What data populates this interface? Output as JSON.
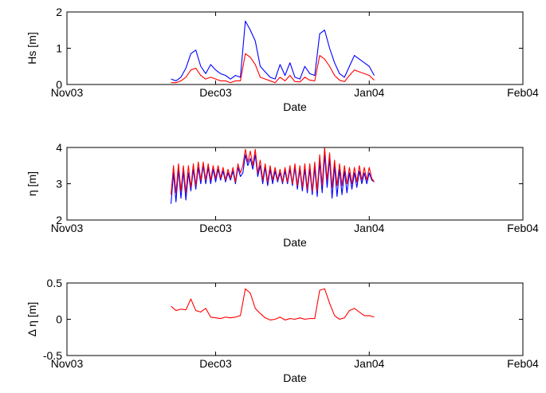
{
  "figure": {
    "background": "#ffffff"
  },
  "chart_data": [
    {
      "type": "line",
      "xlabel": "Date",
      "ylabel": "Hs [m]",
      "xlim": [
        "2003-11-01",
        "2004-02-01"
      ],
      "ylim": [
        0,
        2
      ],
      "xticks": [
        {
          "date": "2003-11-01",
          "label": "Nov03"
        },
        {
          "date": "2003-12-01",
          "label": "Dec03"
        },
        {
          "date": "2004-01-01",
          "label": "Jan04"
        },
        {
          "date": "2004-02-01",
          "label": "Feb04"
        }
      ],
      "yticks": [
        {
          "value": 0,
          "label": "0"
        },
        {
          "value": 1,
          "label": "1"
        },
        {
          "value": 2,
          "label": "2"
        }
      ],
      "grid": false,
      "series": [
        {
          "color": "#0000ff",
          "x": [
            "2003-11-22",
            "2003-11-23",
            "2003-11-24",
            "2003-11-25",
            "2003-11-26",
            "2003-11-27",
            "2003-11-28",
            "2003-11-29",
            "2003-11-30",
            "2003-12-01",
            "2003-12-02",
            "2003-12-03",
            "2003-12-04",
            "2003-12-05",
            "2003-12-06",
            "2003-12-07",
            "2003-12-08",
            "2003-12-09",
            "2003-12-10",
            "2003-12-11",
            "2003-12-12",
            "2003-12-13",
            "2003-12-14",
            "2003-12-15",
            "2003-12-16",
            "2003-12-17",
            "2003-12-18",
            "2003-12-19",
            "2003-12-20",
            "2003-12-21",
            "2003-12-22",
            "2003-12-23",
            "2003-12-24",
            "2003-12-25",
            "2003-12-26",
            "2003-12-27",
            "2003-12-28",
            "2003-12-29",
            "2003-12-30",
            "2003-12-31",
            "2004-01-01",
            "2004-01-02"
          ],
          "y": [
            0.15,
            0.1,
            0.2,
            0.45,
            0.85,
            0.95,
            0.5,
            0.3,
            0.55,
            0.4,
            0.3,
            0.25,
            0.15,
            0.25,
            0.2,
            1.75,
            1.5,
            1.2,
            0.5,
            0.35,
            0.2,
            0.15,
            0.55,
            0.25,
            0.6,
            0.2,
            0.15,
            0.5,
            0.3,
            0.25,
            1.4,
            1.5,
            1.0,
            0.6,
            0.3,
            0.2,
            0.5,
            0.8,
            0.7,
            0.6,
            0.5,
            0.25
          ]
        },
        {
          "color": "#ff0000",
          "x": [
            "2003-11-22",
            "2003-11-23",
            "2003-11-24",
            "2003-11-25",
            "2003-11-26",
            "2003-11-27",
            "2003-11-28",
            "2003-11-29",
            "2003-11-30",
            "2003-12-01",
            "2003-12-02",
            "2003-12-03",
            "2003-12-04",
            "2003-12-05",
            "2003-12-06",
            "2003-12-07",
            "2003-12-08",
            "2003-12-09",
            "2003-12-10",
            "2003-12-11",
            "2003-12-12",
            "2003-12-13",
            "2003-12-14",
            "2003-12-15",
            "2003-12-16",
            "2003-12-17",
            "2003-12-18",
            "2003-12-19",
            "2003-12-20",
            "2003-12-21",
            "2003-12-22",
            "2003-12-23",
            "2003-12-24",
            "2003-12-25",
            "2003-12-26",
            "2003-12-27",
            "2003-12-28",
            "2003-12-29",
            "2003-12-30",
            "2003-12-31",
            "2004-01-01",
            "2004-01-02"
          ],
          "y": [
            0.05,
            0.05,
            0.1,
            0.2,
            0.4,
            0.45,
            0.25,
            0.15,
            0.2,
            0.15,
            0.1,
            0.1,
            0.05,
            0.1,
            0.1,
            0.85,
            0.75,
            0.55,
            0.2,
            0.15,
            0.1,
            0.05,
            0.2,
            0.1,
            0.25,
            0.08,
            0.07,
            0.2,
            0.12,
            0.1,
            0.8,
            0.7,
            0.5,
            0.25,
            0.12,
            0.08,
            0.25,
            0.4,
            0.35,
            0.3,
            0.25,
            0.12
          ]
        }
      ]
    },
    {
      "type": "line",
      "xlabel": "Date",
      "ylabel": "η [m]",
      "xlim": [
        "2003-11-01",
        "2004-02-01"
      ],
      "ylim": [
        2,
        4
      ],
      "xticks": [
        {
          "date": "2003-11-01",
          "label": "Nov03"
        },
        {
          "date": "2003-12-01",
          "label": "Dec03"
        },
        {
          "date": "2004-01-01",
          "label": "Jan04"
        },
        {
          "date": "2004-02-01",
          "label": "Feb04"
        }
      ],
      "yticks": [
        {
          "value": 2,
          "label": "2"
        },
        {
          "value": 3,
          "label": "3"
        },
        {
          "value": 4,
          "label": "4"
        }
      ],
      "grid": false,
      "series": [
        {
          "color": "#0000ff",
          "x": [
            "2003-11-22",
            "2003-11-22T12:00",
            "2003-11-23",
            "2003-11-23T12:00",
            "2003-11-24",
            "2003-11-24T12:00",
            "2003-11-25",
            "2003-11-25T12:00",
            "2003-11-26",
            "2003-11-26T12:00",
            "2003-11-27",
            "2003-11-27T12:00",
            "2003-11-28",
            "2003-11-28T12:00",
            "2003-11-29",
            "2003-11-29T12:00",
            "2003-11-30",
            "2003-11-30T12:00",
            "2003-12-01",
            "2003-12-01T12:00",
            "2003-12-02",
            "2003-12-02T12:00",
            "2003-12-03",
            "2003-12-03T12:00",
            "2003-12-04",
            "2003-12-04T12:00",
            "2003-12-05",
            "2003-12-05T12:00",
            "2003-12-06",
            "2003-12-06T12:00",
            "2003-12-07",
            "2003-12-07T12:00",
            "2003-12-08",
            "2003-12-08T12:00",
            "2003-12-09",
            "2003-12-09T12:00",
            "2003-12-10",
            "2003-12-10T12:00",
            "2003-12-11",
            "2003-12-11T12:00",
            "2003-12-12",
            "2003-12-12T12:00",
            "2003-12-13",
            "2003-12-13T12:00",
            "2003-12-14",
            "2003-12-14T12:00",
            "2003-12-15",
            "2003-12-15T12:00",
            "2003-12-16",
            "2003-12-16T12:00",
            "2003-12-17",
            "2003-12-17T12:00",
            "2003-12-18",
            "2003-12-18T12:00",
            "2003-12-19",
            "2003-12-19T12:00",
            "2003-12-20",
            "2003-12-20T12:00",
            "2003-12-21",
            "2003-12-21T12:00",
            "2003-12-22",
            "2003-12-22T12:00",
            "2003-12-23",
            "2003-12-23T12:00",
            "2003-12-24",
            "2003-12-24T12:00",
            "2003-12-25",
            "2003-12-25T12:00",
            "2003-12-26",
            "2003-12-26T12:00",
            "2003-12-27",
            "2003-12-27T12:00",
            "2003-12-28",
            "2003-12-28T12:00",
            "2003-12-29",
            "2003-12-29T12:00",
            "2003-12-30",
            "2003-12-30T12:00",
            "2003-12-31",
            "2003-12-31T12:00",
            "2004-01-01",
            "2004-01-01T12:00",
            "2004-01-02"
          ],
          "y": [
            2.45,
            3.3,
            2.5,
            3.4,
            2.6,
            3.35,
            2.55,
            3.3,
            2.8,
            3.4,
            2.85,
            3.45,
            3.0,
            3.5,
            3.0,
            3.45,
            3.0,
            3.4,
            3.05,
            3.4,
            3.1,
            3.35,
            3.05,
            3.3,
            3.1,
            3.35,
            3.0,
            3.45,
            3.2,
            3.3,
            3.8,
            3.5,
            3.7,
            3.4,
            3.8,
            3.2,
            3.5,
            3.0,
            3.45,
            2.95,
            3.4,
            3.0,
            3.35,
            3.05,
            3.3,
            3.0,
            3.35,
            3.0,
            3.4,
            2.95,
            3.45,
            2.85,
            3.4,
            2.8,
            3.4,
            2.75,
            3.4,
            2.7,
            3.45,
            2.65,
            3.6,
            2.75,
            3.8,
            2.9,
            3.7,
            2.6,
            3.5,
            2.65,
            3.4,
            2.7,
            3.35,
            2.75,
            3.3,
            2.85,
            3.3,
            2.9,
            3.35,
            3.0,
            3.3,
            3.0,
            3.3,
            3.1,
            3.05
          ]
        },
        {
          "color": "#ff0000",
          "x": [
            "2003-11-22",
            "2003-11-22T12:00",
            "2003-11-23",
            "2003-11-23T12:00",
            "2003-11-24",
            "2003-11-24T12:00",
            "2003-11-25",
            "2003-11-25T12:00",
            "2003-11-26",
            "2003-11-26T12:00",
            "2003-11-27",
            "2003-11-27T12:00",
            "2003-11-28",
            "2003-11-28T12:00",
            "2003-11-29",
            "2003-11-29T12:00",
            "2003-11-30",
            "2003-11-30T12:00",
            "2003-12-01",
            "2003-12-01T12:00",
            "2003-12-02",
            "2003-12-02T12:00",
            "2003-12-03",
            "2003-12-03T12:00",
            "2003-12-04",
            "2003-12-04T12:00",
            "2003-12-05",
            "2003-12-05T12:00",
            "2003-12-06",
            "2003-12-06T12:00",
            "2003-12-07",
            "2003-12-07T12:00",
            "2003-12-08",
            "2003-12-08T12:00",
            "2003-12-09",
            "2003-12-09T12:00",
            "2003-12-10",
            "2003-12-10T12:00",
            "2003-12-11",
            "2003-12-11T12:00",
            "2003-12-12",
            "2003-12-12T12:00",
            "2003-12-13",
            "2003-12-13T12:00",
            "2003-12-14",
            "2003-12-14T12:00",
            "2003-12-15",
            "2003-12-15T12:00",
            "2003-12-16",
            "2003-12-16T12:00",
            "2003-12-17",
            "2003-12-17T12:00",
            "2003-12-18",
            "2003-12-18T12:00",
            "2003-12-19",
            "2003-12-19T12:00",
            "2003-12-20",
            "2003-12-20T12:00",
            "2003-12-21",
            "2003-12-21T12:00",
            "2003-12-22",
            "2003-12-22T12:00",
            "2003-12-23",
            "2003-12-23T12:00",
            "2003-12-24",
            "2003-12-24T12:00",
            "2003-12-25",
            "2003-12-25T12:00",
            "2003-12-26",
            "2003-12-26T12:00",
            "2003-12-27",
            "2003-12-27T12:00",
            "2003-12-28",
            "2003-12-28T12:00",
            "2003-12-29",
            "2003-12-29T12:00",
            "2003-12-30",
            "2003-12-30T12:00",
            "2003-12-31",
            "2003-12-31T12:00",
            "2004-01-01",
            "2004-01-01T12:00",
            "2004-01-02"
          ],
          "y": [
            2.7,
            3.5,
            2.75,
            3.55,
            2.8,
            3.5,
            2.75,
            3.5,
            2.9,
            3.55,
            2.95,
            3.6,
            3.1,
            3.6,
            3.1,
            3.55,
            3.1,
            3.5,
            3.15,
            3.5,
            3.15,
            3.45,
            3.1,
            3.4,
            3.15,
            3.45,
            3.05,
            3.55,
            3.3,
            3.5,
            3.95,
            3.6,
            3.9,
            3.5,
            3.95,
            3.3,
            3.65,
            3.1,
            3.55,
            3.05,
            3.5,
            3.1,
            3.45,
            3.1,
            3.4,
            3.05,
            3.45,
            3.05,
            3.5,
            3.0,
            3.55,
            2.95,
            3.5,
            2.9,
            3.55,
            2.85,
            3.55,
            2.8,
            3.6,
            2.8,
            3.8,
            2.95,
            4.0,
            3.1,
            3.85,
            2.9,
            3.65,
            2.95,
            3.55,
            2.95,
            3.5,
            3.0,
            3.45,
            3.0,
            3.45,
            3.05,
            3.5,
            3.1,
            3.45,
            3.1,
            3.45,
            3.15,
            3.05
          ]
        }
      ]
    },
    {
      "type": "line",
      "xlabel": "Date",
      "ylabel": "Δ η [m]",
      "xlim": [
        "2003-11-01",
        "2004-02-01"
      ],
      "ylim": [
        -0.5,
        0.5
      ],
      "xticks": [
        {
          "date": "2003-11-01",
          "label": "Nov03"
        },
        {
          "date": "2003-12-01",
          "label": "Dec03"
        },
        {
          "date": "2004-01-01",
          "label": "Jan04"
        },
        {
          "date": "2004-02-01",
          "label": "Feb04"
        }
      ],
      "yticks": [
        {
          "value": -0.5,
          "label": "-0.5"
        },
        {
          "value": 0,
          "label": "0"
        },
        {
          "value": 0.5,
          "label": "0.5"
        }
      ],
      "grid": false,
      "series": [
        {
          "color": "#ff0000",
          "x": [
            "2003-11-22",
            "2003-11-23",
            "2003-11-24",
            "2003-11-25",
            "2003-11-26",
            "2003-11-27",
            "2003-11-28",
            "2003-11-29",
            "2003-11-30",
            "2003-12-01",
            "2003-12-02",
            "2003-12-03",
            "2003-12-04",
            "2003-12-05",
            "2003-12-06",
            "2003-12-07",
            "2003-12-08",
            "2003-12-09",
            "2003-12-10",
            "2003-12-11",
            "2003-12-12",
            "2003-12-13",
            "2003-12-14",
            "2003-12-15",
            "2003-12-16",
            "2003-12-17",
            "2003-12-18",
            "2003-12-19",
            "2003-12-20",
            "2003-12-21",
            "2003-12-22",
            "2003-12-23",
            "2003-12-24",
            "2003-12-25",
            "2003-12-26",
            "2003-12-27",
            "2003-12-28",
            "2003-12-29",
            "2003-12-30",
            "2003-12-31",
            "2004-01-01",
            "2004-01-02"
          ],
          "y": [
            0.18,
            0.12,
            0.14,
            0.13,
            0.28,
            0.12,
            0.1,
            0.15,
            0.03,
            0.02,
            0.01,
            0.03,
            0.02,
            0.03,
            0.05,
            0.42,
            0.36,
            0.15,
            0.08,
            0.02,
            -0.01,
            0.0,
            0.03,
            -0.01,
            0.01,
            0.0,
            0.02,
            0.0,
            0.01,
            0.01,
            0.4,
            0.42,
            0.22,
            0.05,
            0.0,
            0.02,
            0.12,
            0.15,
            0.1,
            0.05,
            0.05,
            0.03
          ]
        }
      ]
    }
  ]
}
